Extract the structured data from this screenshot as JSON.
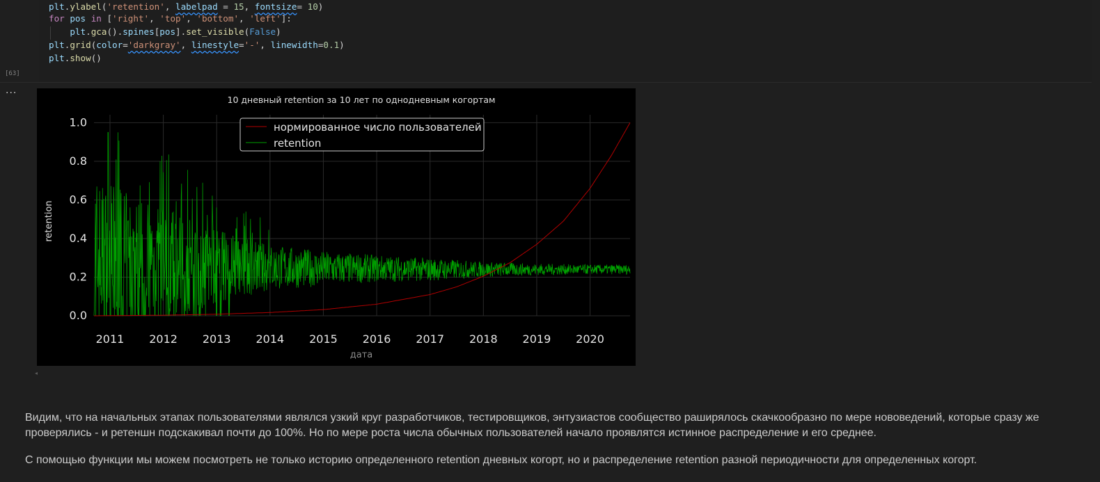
{
  "code_lines": [
    [
      {
        "c": "t-var",
        "t": "plt"
      },
      {
        "c": "",
        "t": "."
      },
      {
        "c": "t-fn",
        "t": "ylabel"
      },
      {
        "c": "",
        "t": "("
      },
      {
        "c": "t-str",
        "t": "'retention'"
      },
      {
        "c": "",
        "t": ", "
      },
      {
        "c": "t-param squig",
        "t": "labelpad"
      },
      {
        "c": "",
        "t": " = "
      },
      {
        "c": "t-num",
        "t": "15"
      },
      {
        "c": "",
        "t": ", "
      },
      {
        "c": "t-param squig",
        "t": "fontsize"
      },
      {
        "c": "",
        "t": "= "
      },
      {
        "c": "t-num",
        "t": "10"
      },
      {
        "c": "",
        "t": ")"
      }
    ],
    [
      {
        "c": "t-kw",
        "t": "for"
      },
      {
        "c": "",
        "t": " "
      },
      {
        "c": "t-var",
        "t": "pos"
      },
      {
        "c": "",
        "t": " "
      },
      {
        "c": "t-kw",
        "t": "in"
      },
      {
        "c": "",
        "t": " ["
      },
      {
        "c": "t-str",
        "t": "'right'"
      },
      {
        "c": "",
        "t": ", "
      },
      {
        "c": "t-str",
        "t": "'top'"
      },
      {
        "c": "",
        "t": ", "
      },
      {
        "c": "t-str",
        "t": "'bottom'"
      },
      {
        "c": "",
        "t": ", "
      },
      {
        "c": "t-str",
        "t": "'left'"
      },
      {
        "c": "",
        "t": "]:"
      }
    ],
    [
      {
        "c": "",
        "t": "    "
      },
      {
        "c": "t-var",
        "t": "plt"
      },
      {
        "c": "",
        "t": "."
      },
      {
        "c": "t-fn",
        "t": "gca"
      },
      {
        "c": "",
        "t": "()."
      },
      {
        "c": "t-var",
        "t": "spines"
      },
      {
        "c": "",
        "t": "["
      },
      {
        "c": "t-var",
        "t": "pos"
      },
      {
        "c": "",
        "t": "]."
      },
      {
        "c": "t-fn",
        "t": "set_visible"
      },
      {
        "c": "",
        "t": "("
      },
      {
        "c": "t-const",
        "t": "False"
      },
      {
        "c": "",
        "t": ")"
      }
    ],
    [
      {
        "c": "t-var",
        "t": "plt"
      },
      {
        "c": "",
        "t": "."
      },
      {
        "c": "t-fn",
        "t": "grid"
      },
      {
        "c": "",
        "t": "("
      },
      {
        "c": "t-param",
        "t": "color"
      },
      {
        "c": "",
        "t": "="
      },
      {
        "c": "t-str squig",
        "t": "'darkgray'"
      },
      {
        "c": "",
        "t": ", "
      },
      {
        "c": "t-param squig",
        "t": "linestyle"
      },
      {
        "c": "",
        "t": "="
      },
      {
        "c": "t-str",
        "t": "'-'"
      },
      {
        "c": "",
        "t": ", "
      },
      {
        "c": "t-param",
        "t": "linewidth"
      },
      {
        "c": "",
        "t": "="
      },
      {
        "c": "t-num",
        "t": "0.1"
      },
      {
        "c": "",
        "t": ")"
      }
    ],
    [
      {
        "c": "t-var",
        "t": "plt"
      },
      {
        "c": "",
        "t": "."
      },
      {
        "c": "t-fn",
        "t": "show"
      },
      {
        "c": "",
        "t": "()"
      }
    ]
  ],
  "cell": {
    "exec_count": "[63]",
    "output_menu": "..."
  },
  "markdown": {
    "p1_line1": "Видим, что на начальных этапах пользователями являлся узкий круг разработчиков, тестировщиков, энтузиастов сообщество раширялось скачкообразно по мере нововедений, которые сразу же",
    "p1_line2": "проверялись - и ретеншн подскакивал почти до 100%. Но по мере роста числа обычных пользователей начало проявлятся истинное распределение и его среднее.",
    "p2": "С помощью функции мы можем посмотреть не только историю определенного retention дневных когорт, но и распределение retention разной периодичности для определенных когорт."
  },
  "chart_data": {
    "type": "line",
    "title": "10 дневный retention за 10 лет по однодневным когортам",
    "xlabel": "дата",
    "ylabel": "retention",
    "x_range": [
      2010.7,
      2020.75
    ],
    "ylim": [
      0,
      1.05
    ],
    "x_ticks": [
      "2011",
      "2012",
      "2013",
      "2014",
      "2015",
      "2016",
      "2017",
      "2018",
      "2019",
      "2020"
    ],
    "y_ticks": [
      "0.0",
      "0.2",
      "0.4",
      "0.6",
      "0.8",
      "1.0"
    ],
    "grid": true,
    "legend_position": "upper-center",
    "series": [
      {
        "name": "нормированное число пользователей",
        "color": "#b30000",
        "x": [
          2010.7,
          2012,
          2013,
          2014,
          2015,
          2016,
          2017,
          2017.5,
          2018,
          2018.5,
          2019,
          2019.5,
          2020,
          2020.4,
          2020.75
        ],
        "y": [
          0.0,
          0.003,
          0.008,
          0.017,
          0.032,
          0.06,
          0.11,
          0.15,
          0.205,
          0.275,
          0.37,
          0.49,
          0.66,
          0.83,
          1.0
        ]
      },
      {
        "name": "retention",
        "color": "#00a000",
        "x": [
          2010.7,
          2011,
          2011.5,
          2012,
          2012.5,
          2013,
          2013.5,
          2014,
          2015,
          2016,
          2017,
          2018,
          2019,
          2020,
          2020.75
        ],
        "y_mean": [
          0.3,
          0.28,
          0.27,
          0.26,
          0.26,
          0.255,
          0.25,
          0.25,
          0.245,
          0.245,
          0.24,
          0.24,
          0.24,
          0.24,
          0.24
        ],
        "y_spread": [
          0.45,
          0.4,
          0.35,
          0.3,
          0.25,
          0.2,
          0.15,
          0.12,
          0.09,
          0.07,
          0.06,
          0.04,
          0.03,
          0.025,
          0.025
        ]
      }
    ]
  }
}
